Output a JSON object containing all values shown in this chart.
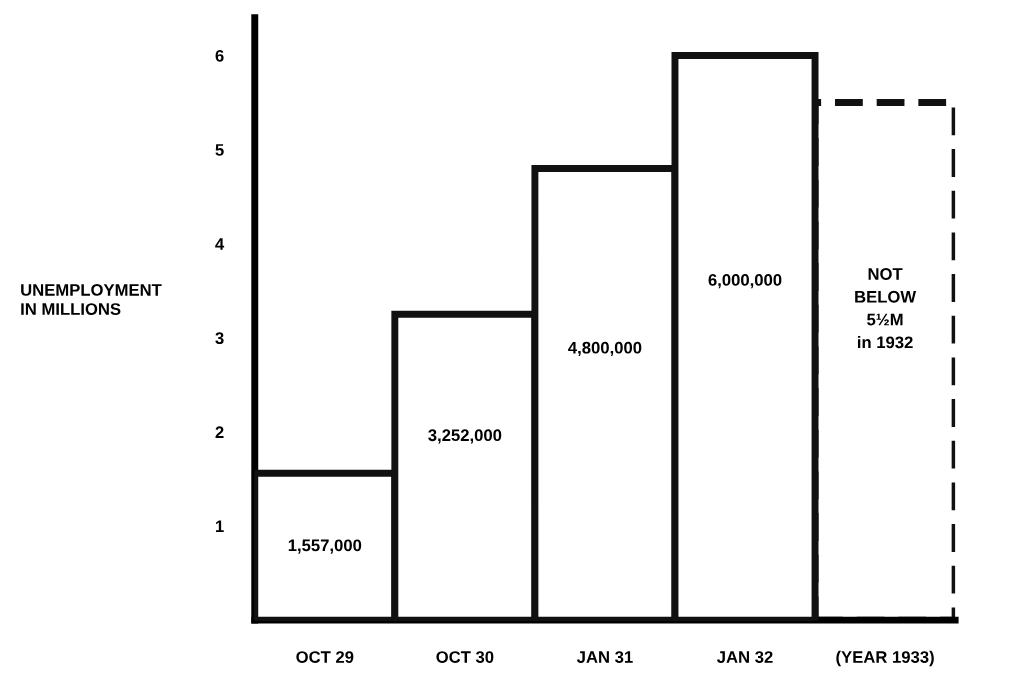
{
  "chart_data": {
    "type": "bar",
    "ylabel": "UNEMPLOYMENT\nIN MILLIONS",
    "categories": [
      "OCT 29",
      "OCT 30",
      "JAN 31",
      "JAN 32",
      "(YEAR 1933)"
    ],
    "series": [
      {
        "color": "#111111",
        "line_style": "solid",
        "values": [
          1.56,
          3.25,
          4.8,
          6.0,
          null
        ]
      },
      {
        "color": "#111111",
        "line_style": "dashed",
        "values": [
          null,
          null,
          null,
          null,
          5.5
        ]
      }
    ],
    "annotations": [
      "1,557,000",
      "3,252,000",
      "4,800,000",
      "6,000,000",
      "NOT\nBELOW\n5½M\nin 1932"
    ],
    "ylim": [
      0,
      6.4
    ],
    "yticks": [
      1,
      2,
      3,
      4,
      5,
      6
    ],
    "grid": false,
    "legend": false
  }
}
